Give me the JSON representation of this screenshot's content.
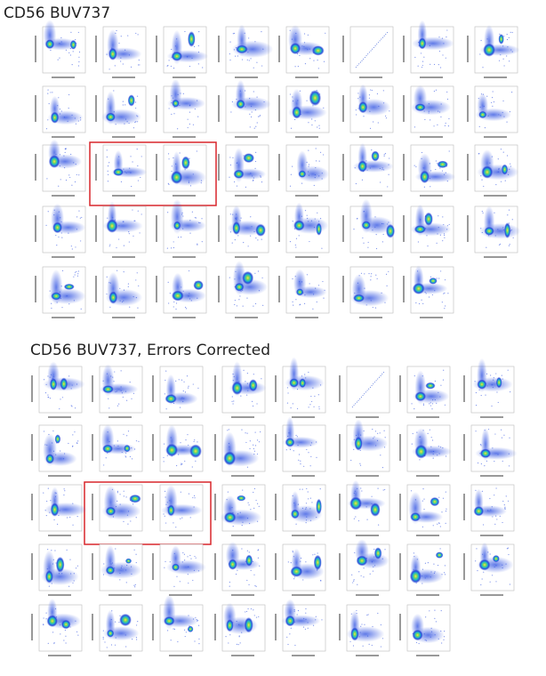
{
  "sections": [
    {
      "title": "CD56 BUV737"
    },
    {
      "title": "CD56 BUV737, Errors Corrected"
    }
  ]
}
